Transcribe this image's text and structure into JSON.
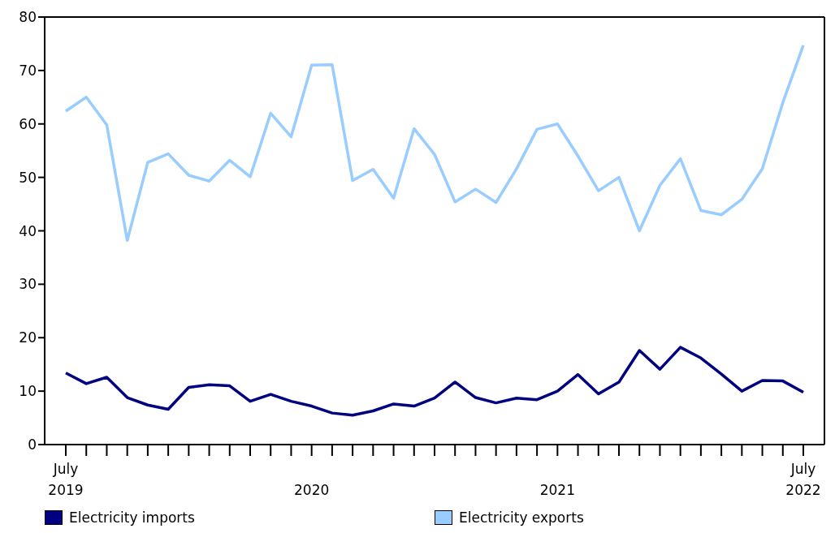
{
  "chart_data": {
    "type": "line",
    "categories": [
      "July 2019",
      null,
      null,
      null,
      null,
      null,
      null,
      null,
      null,
      null,
      null,
      null,
      "2020",
      null,
      null,
      null,
      null,
      null,
      null,
      null,
      null,
      null,
      null,
      null,
      "2021",
      null,
      null,
      null,
      null,
      null,
      null,
      null,
      null,
      null,
      null,
      null,
      "July 2022"
    ],
    "series": [
      {
        "name": "Electricity imports",
        "color": "#000080",
        "values": [
          13.4,
          11.4,
          12.6,
          8.8,
          7.4,
          6.6,
          10.7,
          11.2,
          11.0,
          8.1,
          9.4,
          8.1,
          7.2,
          5.9,
          5.5,
          6.3,
          7.6,
          7.2,
          8.7,
          11.7,
          8.8,
          7.8,
          8.7,
          8.4,
          10.0,
          13.1,
          9.5,
          11.7,
          17.6,
          14.1,
          18.2,
          16.2,
          13.2,
          10.0,
          12.0,
          11.9,
          9.8
        ]
      },
      {
        "name": "Electricity exports",
        "color": "#99ccff",
        "values": [
          62.4,
          65.0,
          59.8,
          38.2,
          52.8,
          54.4,
          50.4,
          49.3,
          53.2,
          50.1,
          62.0,
          57.6,
          71.0,
          71.1,
          49.4,
          51.5,
          46.1,
          59.1,
          54.3,
          45.4,
          47.8,
          45.3,
          51.6,
          59.0,
          60.0,
          54.0,
          47.5,
          50.0,
          40.0,
          48.5,
          53.5,
          43.8,
          43.0,
          45.9,
          51.6,
          64.0,
          74.7
        ]
      }
    ],
    "ylim": [
      0,
      80
    ],
    "yticks": [
      0,
      10,
      20,
      30,
      40,
      50,
      60,
      70,
      80
    ],
    "grid": false,
    "legend": "bottom",
    "marker": "none",
    "line_style": "solid"
  }
}
